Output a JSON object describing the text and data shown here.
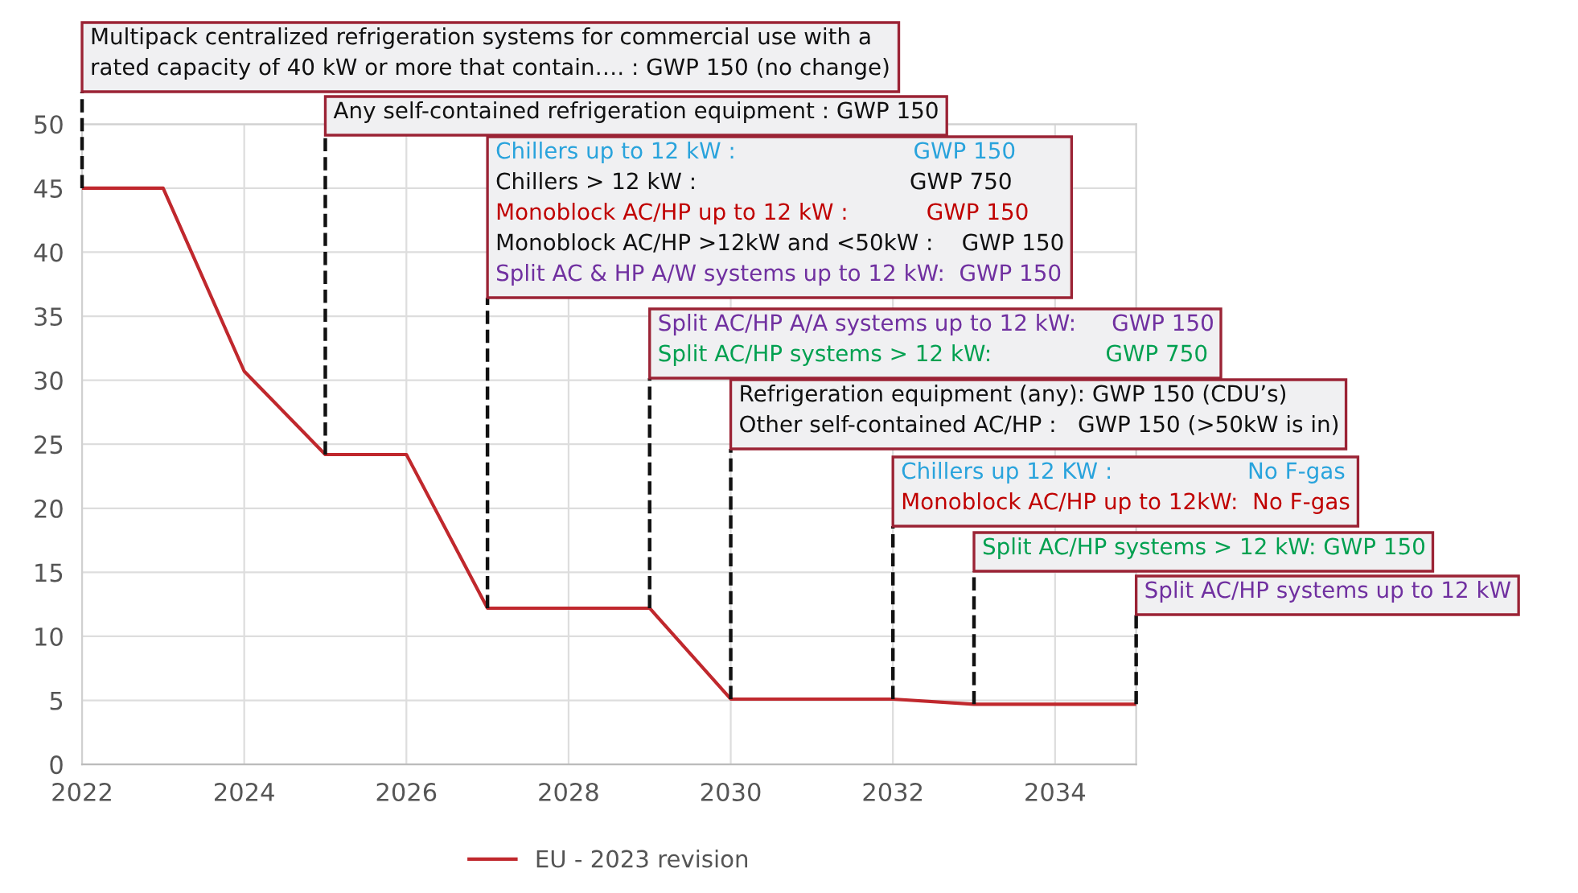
{
  "chart_data": {
    "type": "line",
    "x": [
      2022,
      2023,
      2024,
      2025,
      2026,
      2027,
      2029,
      2030,
      2032,
      2033,
      2035
    ],
    "series": [
      {
        "name": "EU - 2023 revision",
        "color": "#c0282d",
        "values": [
          45,
          45,
          30.7,
          24.2,
          24.2,
          12.2,
          12.2,
          5.1,
          5.1,
          4.7,
          4.7
        ]
      }
    ],
    "xlim": [
      2022,
      2035
    ],
    "xticks": [
      2022,
      2024,
      2026,
      2028,
      2030,
      2032,
      2034
    ],
    "ylim": [
      0,
      50
    ],
    "yticks": [
      0,
      5,
      10,
      15,
      20,
      25,
      30,
      35,
      40,
      45,
      50
    ],
    "grid": true,
    "legend": "bottom",
    "marker": "none",
    "line_style": "solid",
    "annotations": [
      "Multipack centralized refrigeration systems for commercial use with a",
      {
        "text": "rated capacity of 40 kW or more that contain…. : GWP 150 (no change)",
        "x": 2022,
        "y": 45
      },
      {
        "text": "Any self-contained refrigeration equipment : GWP 150",
        "x": 2025,
        "y": 24.2
      },
      "Chillers up to 12 kW :                         GWP 150",
      "Chillers > 12 kW :                              GWP 750",
      "Monoblock AC/HP up to 12 kW :           GWP 150",
      "Monoblock AC/HP >12kW and <50kW :    GWP 150",
      {
        "text": "Split AC & HP A/W systems up to 12 kW:  GWP 150",
        "x": 2027,
        "y": 12.2
      },
      "Split AC/HP A/A systems up to 12 kW:     GWP 150",
      {
        "text": "Split AC/HP systems > 12 kW:                GWP 750",
        "x": 2029,
        "y": 12.2
      },
      "Refrigeration equipment (any): GWP 150 (CDU’s)",
      {
        "text": "Other self-contained AC/HP :   GWP 150 (>50kW is in)",
        "x": 2030,
        "y": 5.1
      },
      "Chillers up 12 KW :                   No F-gas",
      {
        "text": "Monoblock AC/HP up to 12kW:  No F-gas",
        "x": 2032,
        "y": 5.1
      },
      {
        "text": "Split AC/HP systems > 12 kW: GWP 150",
        "x": 2033,
        "y": 4.7
      },
      {
        "text": "Split AC/HP systems up to 12 kW",
        "x": 2035,
        "y": 4.7
      }
    ]
  }
}
